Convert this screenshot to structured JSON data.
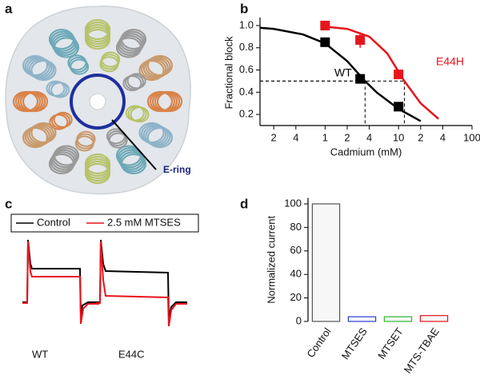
{
  "panel_labels": [
    "a",
    "b",
    "c",
    "d"
  ],
  "panel_a": {
    "label": "E-ring"
  },
  "panel_c": {
    "legend": [
      {
        "name": "Control",
        "color": "#000000"
      },
      {
        "name": "2.5 mM MTSES",
        "color": "#e8141b"
      }
    ],
    "traces": [
      "WT",
      "E44C"
    ]
  },
  "chart_data": [
    {
      "type": "scatter",
      "xlabel": "Cadmium (mM)",
      "ylabel": "Fractional block",
      "log_x": true,
      "xlim": [
        0.13,
        100
      ],
      "xticks": [
        {
          "value": 0.2,
          "label": "2"
        },
        {
          "value": 0.4,
          "label": "4"
        },
        1,
        {
          "value": 2,
          "label": "2"
        },
        {
          "value": 4,
          "label": "4"
        },
        10,
        {
          "value": 20,
          "label": "2"
        },
        {
          "value": 40,
          "label": "4"
        },
        100
      ],
      "ylim": [
        0.1,
        1.05
      ],
      "yticks": [
        0.2,
        0.4,
        0.6,
        0.8,
        {
          "value": 1,
          "label": "1.0"
        }
      ],
      "series": [
        {
          "name": "WT",
          "color": "#000000",
          "x": [
            1,
            3,
            10
          ],
          "values": [
            0.85,
            0.52,
            0.27
          ],
          "errors": [
            null,
            null,
            null
          ]
        },
        {
          "name": "E44H",
          "color": "#e8141b",
          "x": [
            1,
            3,
            10
          ],
          "values": [
            1.0,
            0.87,
            0.56
          ],
          "errors": [
            null,
            0.07,
            null
          ]
        }
      ],
      "fits": [
        {
          "color": "#000000",
          "x": [
            0.13,
            0.2,
            0.5,
            1,
            2,
            3.5,
            5,
            10,
            20
          ],
          "values": [
            0.98,
            0.97,
            0.92,
            0.84,
            0.68,
            0.5,
            0.4,
            0.25,
            0.14
          ]
        },
        {
          "color": "#e8141b",
          "x": [
            1,
            2,
            4,
            7,
            12,
            20,
            35
          ],
          "values": [
            0.99,
            0.97,
            0.9,
            0.75,
            0.5,
            0.3,
            0.16
          ]
        }
      ],
      "reference_lines": [
        {
          "x": 3.5,
          "y": 0.5
        },
        {
          "x": 12,
          "y": 0.5
        }
      ]
    },
    {
      "type": "bar",
      "ylabel": "Normalized current",
      "categories": [
        "Control",
        "MTSES",
        "MTSET",
        "MTS-TBAE"
      ],
      "values": [
        100,
        4,
        4,
        5
      ],
      "colors": [
        "#555555",
        "#2a3fd6",
        "#2eb82e",
        "#e8141b"
      ],
      "ylim": [
        0,
        105
      ],
      "yticks": [
        0,
        20,
        40,
        60,
        80,
        100
      ]
    }
  ]
}
